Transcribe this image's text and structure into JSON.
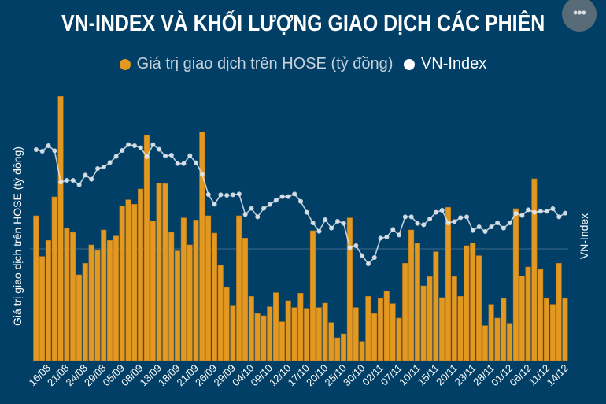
{
  "chart_data": {
    "type": "bar+line",
    "title": "VN-INDEX VÀ KHỐI LƯỢNG GIAO DỊCH CÁC PHIÊN",
    "ylabel": "Giá trị giao dịch trên HOSE (tỷ đồng)",
    "y2label": "VN-Index",
    "value_note": "no numeric ticks printed; values are relative estimates",
    "ylim": [
      0,
      100.5
    ],
    "y2lim": [
      0,
      100.5
    ],
    "grid": true,
    "legend_position": "top-center",
    "x_tick_labels": [
      "16/08",
      "21/08",
      "24/08",
      "29/08",
      "05/09",
      "08/09",
      "13/09",
      "18/09",
      "21/09",
      "26/09",
      "29/09",
      "04/10",
      "09/10",
      "12/10",
      "17/10",
      "20/10",
      "25/10",
      "30/10",
      "02/11",
      "07/11",
      "10/11",
      "15/11",
      "20/11",
      "23/11",
      "28/11",
      "01/12",
      "06/12",
      "11/12",
      "14/12"
    ],
    "series": [
      {
        "name": "Giá trị giao dịch trên HOSE (tỷ đồng)",
        "type": "bar",
        "color": "#e3981f",
        "values": [
          55.2,
          39.7,
          45.8,
          62.4,
          100.7,
          50.4,
          48.9,
          32.7,
          37.1,
          44.1,
          42.0,
          49.8,
          45.8,
          47.5,
          59.0,
          61.3,
          59.6,
          65.4,
          86.0,
          53.2,
          67.6,
          67.4,
          48.9,
          41.8,
          54.4,
          44.1,
          53.6,
          87.2,
          55.2,
          48.6,
          36.3,
          27.9,
          21.1,
          55.2,
          46.7,
          24.5,
          17.9,
          17.1,
          20.5,
          25.9,
          14.8,
          22.8,
          20.2,
          25.7,
          19.9,
          49.5,
          20.2,
          21.9,
          14.5,
          8.7,
          10.2,
          54.4,
          20.2,
          7.3,
          24.5,
          17.9,
          23.7,
          26.5,
          21.7,
          16.2,
          37.1,
          49.8,
          44.7,
          28.5,
          32.0,
          41.5,
          24.0,
          58.4,
          32.0,
          24.5,
          43.8,
          44.9,
          40.0,
          13.3,
          21.4,
          16.2,
          23.7,
          14.2,
          57.9,
          32.3,
          35.7,
          69.3,
          34.8,
          23.7,
          21.4,
          37.1,
          23.7
        ]
      },
      {
        "name": "VN-Index",
        "type": "line",
        "color": "#ffffff",
        "values": [
          80.4,
          79.8,
          81.9,
          80.0,
          68.0,
          68.7,
          68.7,
          67.0,
          70.7,
          69.1,
          73.2,
          73.8,
          75.5,
          77.8,
          80.1,
          82.3,
          81.9,
          81.1,
          77.7,
          82.3,
          80.5,
          78.0,
          78.3,
          75.1,
          75.1,
          78.1,
          75.4,
          71.0,
          63.3,
          59.6,
          63.2,
          63.0,
          63.2,
          63.5,
          55.7,
          58.0,
          54.8,
          58.0,
          59.5,
          61.1,
          62.5,
          62.5,
          63.5,
          60.7,
          56.5,
          52.5,
          49.3,
          53.7,
          50.5,
          53.1,
          52.3,
          43.0,
          43.8,
          40.0,
          36.9,
          39.3,
          46.7,
          47.1,
          50.0,
          47.9,
          54.8,
          54.8,
          52.3,
          51.8,
          54.0,
          56.5,
          57.3,
          52.5,
          53.0,
          54.5,
          54.8,
          49.6,
          51.0,
          49.2,
          51.0,
          52.5,
          50.5,
          52.5,
          56.1,
          55.3,
          57.5,
          56.5,
          56.9,
          56.9,
          57.9,
          54.8,
          56.2
        ]
      }
    ]
  },
  "header": {
    "title": "VN-INDEX VÀ KHỐI LƯỢNG GIAO DỊCH CÁC PHIÊN",
    "menu_icon": "ellipsis-icon",
    "menu_label": "•••"
  },
  "legend": {
    "items": [
      {
        "label": "Giá trị giao dịch trên HOSE (tỷ đồng)",
        "color": "#e3981f",
        "text_color": "#c6d1da"
      },
      {
        "label": "VN-Index",
        "color": "#ffffff",
        "text_color": "#ffffff"
      }
    ]
  }
}
